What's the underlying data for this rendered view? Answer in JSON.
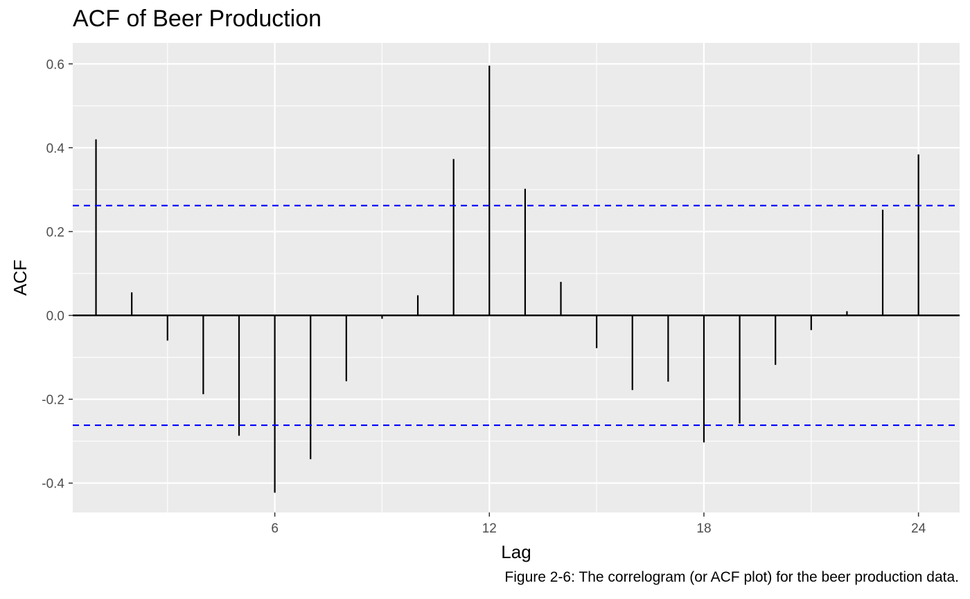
{
  "chart_data": {
    "type": "bar",
    "title": "ACF of Beer Production",
    "caption": "Figure 2-6: The correlogram (or ACF plot) for the beer production data.",
    "xlabel": "Lag",
    "ylabel": "ACF",
    "xlim": [
      0.35,
      25.15
    ],
    "ylim": [
      -0.47,
      0.65
    ],
    "xticks": [
      6,
      12,
      18,
      24
    ],
    "xtick_labels": [
      "6",
      "12",
      "18",
      "24"
    ],
    "yticks": [
      -0.4,
      -0.2,
      0.0,
      0.2,
      0.4,
      0.6
    ],
    "ytick_labels": [
      "-0.4",
      "-0.2",
      "0.0",
      "0.2",
      "0.4",
      "0.6"
    ],
    "x": [
      1,
      2,
      3,
      4,
      5,
      6,
      7,
      8,
      9,
      10,
      11,
      12,
      13,
      14,
      15,
      16,
      17,
      18,
      19,
      20,
      21,
      22,
      23,
      24
    ],
    "values": [
      0.42,
      0.055,
      -0.06,
      -0.188,
      -0.287,
      -0.423,
      -0.343,
      -0.157,
      -0.008,
      0.048,
      0.373,
      0.596,
      0.302,
      0.08,
      -0.078,
      -0.178,
      -0.158,
      -0.303,
      -0.258,
      -0.118,
      -0.035,
      0.01,
      0.252,
      0.384
    ],
    "confidence_bounds": [
      0.262,
      -0.262
    ],
    "grid": true,
    "colors": {
      "panel": "#ebebeb",
      "grid": "#ffffff",
      "bars": "#000000",
      "bounds": "#0000ff"
    }
  }
}
